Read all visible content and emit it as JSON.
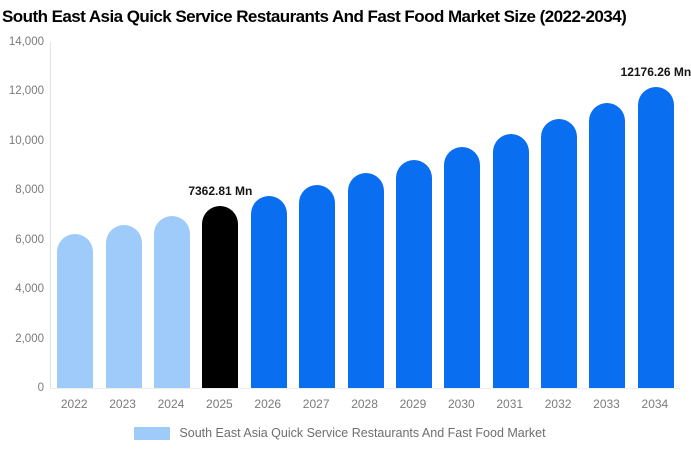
{
  "chart_data": {
    "type": "bar",
    "title": "South East Asia Quick Service Restaurants And Fast Food Market Size (2022-2034)",
    "categories": [
      "2022",
      "2023",
      "2024",
      "2025",
      "2026",
      "2027",
      "2028",
      "2029",
      "2030",
      "2031",
      "2032",
      "2033",
      "2034"
    ],
    "values": [
      6226,
      6584,
      6963,
      7362.81,
      7786,
      8234,
      8707,
      9208,
      9737,
      10297,
      10889,
      11515,
      12176.26
    ],
    "unit": "Mn",
    "xlabel": "",
    "ylabel": "",
    "ylim": [
      0,
      14000
    ],
    "y_ticks": [
      "14,000",
      "12,000",
      "10,000",
      "8,000",
      "6,000",
      "4,000",
      "2,000",
      "0"
    ],
    "grid": "off",
    "legend_position": "bottom",
    "legend_label": "South East Asia Quick Service Restaurants And Fast Food Market",
    "bar_colors": [
      "#9ecbf9",
      "#9ecbf9",
      "#9ecbf9",
      "#000000",
      "#0a6ef0",
      "#0a6ef0",
      "#0a6ef0",
      "#0a6ef0",
      "#0a6ef0",
      "#0a6ef0",
      "#0a6ef0",
      "#0a6ef0",
      "#0a6ef0"
    ],
    "colors": {
      "historical": "#9ecbf9",
      "highlight": "#000000",
      "forecast": "#0a6ef0",
      "axis_text": "#7b7b7b",
      "axis_line": "#e2e2e2"
    },
    "annotations": [
      {
        "index": 3,
        "label": "7362.81 Mn"
      },
      {
        "index": 12,
        "label": "12176.26 Mn"
      }
    ]
  }
}
